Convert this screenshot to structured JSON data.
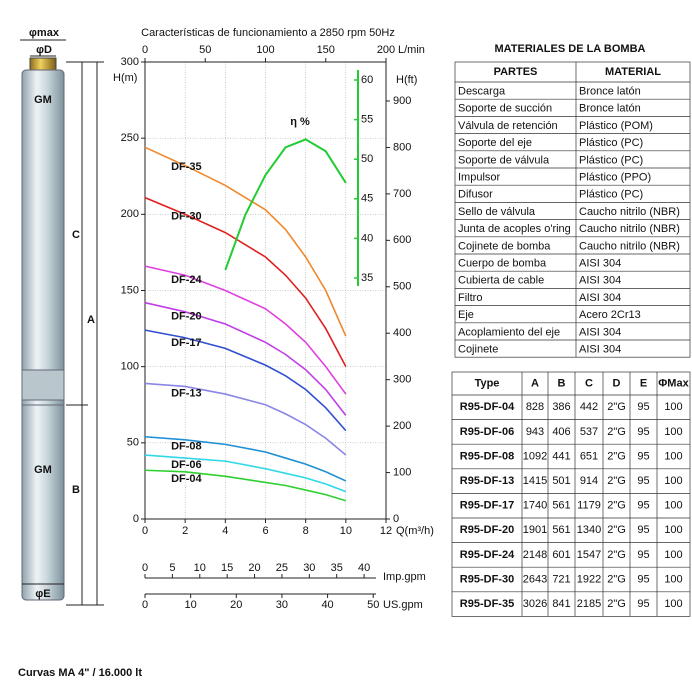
{
  "chart_data": {
    "type": "line",
    "title": "Características de funcionamiento a 2850 rpm 50Hz",
    "x_label": "Q(m³/h)",
    "y_label": "H(m)",
    "y2_label": "H(ft)",
    "top_label": "L/min",
    "imp_label": "Imp.gpm",
    "us_label": "US.gpm",
    "x": [
      0,
      2,
      4,
      6,
      7,
      8,
      9,
      10
    ],
    "xlim": [
      0,
      12
    ],
    "xticks": [
      0,
      2,
      4,
      6,
      8,
      10,
      12
    ],
    "ylim": [
      0,
      300
    ],
    "yticks": [
      0,
      50,
      100,
      150,
      200,
      250,
      300
    ],
    "y2lim": [
      0,
      984
    ],
    "y2ticks": [
      0,
      100,
      200,
      300,
      400,
      500,
      600,
      700,
      800,
      900
    ],
    "toplim": [
      0,
      200
    ],
    "topticks": [
      0,
      50,
      100,
      150,
      200
    ],
    "implim": [
      0,
      44
    ],
    "impticks": [
      0,
      5,
      10,
      15,
      20,
      25,
      30,
      35,
      40
    ],
    "uslim": [
      0,
      52.8
    ],
    "usticks": [
      0,
      10,
      20,
      30,
      40,
      50
    ],
    "grid": true,
    "series": [
      {
        "name": "DF-35",
        "color": "#f0882c",
        "values": [
          244,
          232,
          219,
          203,
          190,
          172,
          150,
          120
        ]
      },
      {
        "name": "DF-30",
        "color": "#e0201e",
        "values": [
          211,
          200,
          188,
          172,
          160,
          145,
          125,
          100
        ]
      },
      {
        "name": "DF-24",
        "color": "#e040e0",
        "values": [
          166,
          160,
          150,
          138,
          128,
          116,
          100,
          82
        ]
      },
      {
        "name": "DF-20",
        "color": "#c23ee6",
        "values": [
          142,
          136,
          128,
          116,
          108,
          98,
          85,
          68
        ]
      },
      {
        "name": "DF-17",
        "color": "#2f4fd0",
        "values": [
          124,
          119,
          112,
          101,
          94,
          85,
          73,
          58
        ]
      },
      {
        "name": "DF-13",
        "color": "#8a86e6",
        "values": [
          89,
          87,
          82,
          75,
          69,
          62,
          53,
          42
        ]
      },
      {
        "name": "DF-08",
        "color": "#1f8fd6",
        "values": [
          54,
          52,
          49,
          44,
          40,
          36,
          31,
          25
        ]
      },
      {
        "name": "DF-06",
        "color": "#2ed8e8",
        "values": [
          42,
          40,
          38,
          33,
          30,
          27,
          23,
          18
        ]
      },
      {
        "name": "DF-04",
        "color": "#2ed030",
        "values": [
          32,
          31,
          28,
          24,
          22,
          19,
          16,
          12
        ]
      }
    ],
    "efficiency": {
      "name": "η %",
      "color": "#22cc33",
      "axis": "y3",
      "x": [
        4,
        5,
        6,
        7,
        8,
        9,
        10
      ],
      "values": [
        36,
        43,
        48,
        51.5,
        52.5,
        51,
        47
      ]
    },
    "y3lim": [
      35,
      60
    ],
    "y3ticks": [
      35,
      40,
      45,
      50,
      55,
      60
    ]
  },
  "pump": {
    "logo": "GM",
    "dim_max": "φmax",
    "dim_d": "φD",
    "dim_c": "C",
    "dim_a": "A",
    "dim_b": "B",
    "dim_e": "φE"
  },
  "materials": {
    "title": "MATERIALES DE LA BOMBA",
    "header": [
      "PARTES",
      "MATERIAL"
    ],
    "rows": [
      [
        "Descarga",
        "Bronce latón"
      ],
      [
        "Soporte de succión",
        "Bronce latón"
      ],
      [
        "Válvula de retención",
        "Plástico (POM)"
      ],
      [
        "Soporte del eje",
        "Plástico (PC)"
      ],
      [
        "Soporte de válvula",
        "Plástico (PC)"
      ],
      [
        "Impulsor",
        "Plástico (PPO)"
      ],
      [
        "Difusor",
        "Plástico (PC)"
      ],
      [
        "Sello de válvula",
        "Caucho nitrilo (NBR)"
      ],
      [
        "Junta de acoples o'ring",
        "Caucho nitrilo (NBR)"
      ],
      [
        "Cojinete de bomba",
        "Caucho nitrilo (NBR)"
      ],
      [
        "Cuerpo de bomba",
        "AISI 304"
      ],
      [
        "Cubierta de cable",
        "AISI 304"
      ],
      [
        "Filtro",
        "AISI 304"
      ],
      [
        "Eje",
        "Acero 2Cr13"
      ],
      [
        "Acoplamiento del eje",
        "AISI 304"
      ],
      [
        "Cojinete",
        "AISI 304"
      ]
    ]
  },
  "dimensions": {
    "header": [
      "Type",
      "A",
      "B",
      "C",
      "D",
      "E",
      "ΦMax"
    ],
    "rows": [
      [
        "R95-DF-04",
        828,
        386,
        442,
        "2\"G",
        95,
        100
      ],
      [
        "R95-DF-06",
        943,
        406,
        537,
        "2\"G",
        95,
        100
      ],
      [
        "R95-DF-08",
        1092,
        441,
        651,
        "2\"G",
        95,
        100
      ],
      [
        "R95-DF-13",
        1415,
        501,
        914,
        "2\"G",
        95,
        100
      ],
      [
        "R95-DF-17",
        1740,
        561,
        1179,
        "2\"G",
        95,
        100
      ],
      [
        "R95-DF-20",
        1901,
        561,
        1340,
        "2\"G",
        95,
        100
      ],
      [
        "R95-DF-24",
        2148,
        601,
        1547,
        "2\"G",
        95,
        100
      ],
      [
        "R95-DF-30",
        2643,
        721,
        1922,
        "2\"G",
        95,
        100
      ],
      [
        "R95-DF-35",
        3026,
        841,
        2185,
        "2\"G",
        95,
        100
      ]
    ]
  },
  "caption": "Curvas MA 4\" / 16.000 lt"
}
